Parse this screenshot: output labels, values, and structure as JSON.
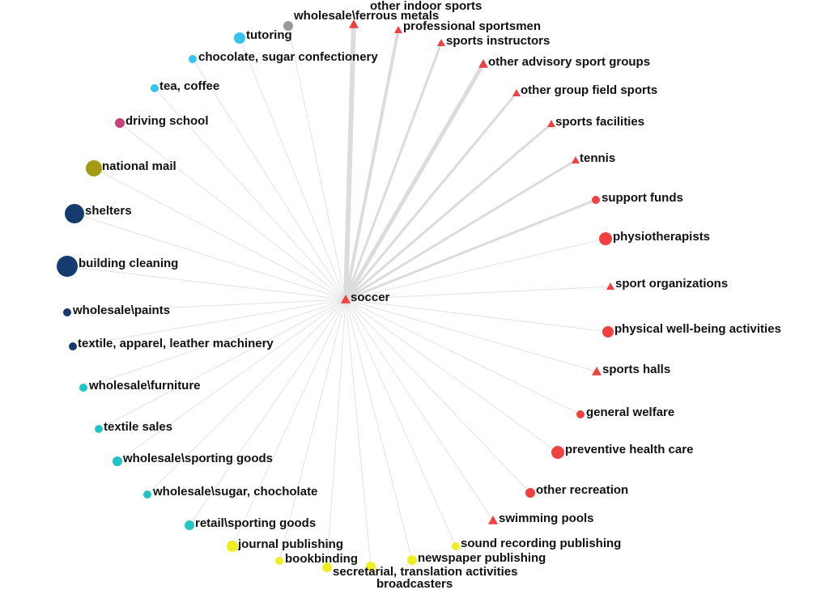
{
  "center": {
    "label": "soccer",
    "color": "#f04040",
    "shape": "triangle"
  },
  "nodes": [
    {
      "label": "other indoor sports",
      "color": "#f04040",
      "shape": "triangle"
    },
    {
      "label": "wholesale\\ferrous metals",
      "color": "#999999",
      "shape": "circle"
    },
    {
      "label": "professional sportsmen",
      "color": "#f04040",
      "shape": "triangle"
    },
    {
      "label": "sports instructors",
      "color": "#f04040",
      "shape": "triangle"
    },
    {
      "label": "other advisory sport groups",
      "color": "#f04040",
      "shape": "triangle"
    },
    {
      "label": "other group field sports",
      "color": "#f04040",
      "shape": "triangle"
    },
    {
      "label": "sports facilities",
      "color": "#f04040",
      "shape": "triangle"
    },
    {
      "label": "tennis",
      "color": "#f04040",
      "shape": "triangle"
    },
    {
      "label": "support funds",
      "color": "#f04040",
      "shape": "circle"
    },
    {
      "label": "physiotherapists",
      "color": "#f04040",
      "shape": "circle"
    },
    {
      "label": "sport organizations",
      "color": "#f04040",
      "shape": "triangle"
    },
    {
      "label": "physical well-being activities",
      "color": "#f04040",
      "shape": "circle"
    },
    {
      "label": "sports halls",
      "color": "#f04040",
      "shape": "triangle"
    },
    {
      "label": "general welfare",
      "color": "#f04040",
      "shape": "circle"
    },
    {
      "label": "preventive health care",
      "color": "#f04040",
      "shape": "circle"
    },
    {
      "label": "other recreation",
      "color": "#f04040",
      "shape": "circle"
    },
    {
      "label": "swimming pools",
      "color": "#f04040",
      "shape": "triangle"
    },
    {
      "label": "sound recording publishing",
      "color": "#eeee22",
      "shape": "circle"
    },
    {
      "label": "newspaper publishing",
      "color": "#eeee22",
      "shape": "circle"
    },
    {
      "label": "broadcasters",
      "color": "#eeee22",
      "shape": "circle"
    },
    {
      "label": "secretarial, translation activities",
      "color": "#eeee22",
      "shape": "circle"
    },
    {
      "label": "bookbinding",
      "color": "#eeee22",
      "shape": "circle"
    },
    {
      "label": "journal publishing",
      "color": "#eeee22",
      "shape": "circle"
    },
    {
      "label": "retail\\sporting goods",
      "color": "#22c4c4",
      "shape": "circle"
    },
    {
      "label": "wholesale\\sugar, chocholate",
      "color": "#22c4c4",
      "shape": "circle"
    },
    {
      "label": "wholesale\\sporting goods",
      "color": "#22c4c4",
      "shape": "circle"
    },
    {
      "label": "textile sales",
      "color": "#22c4c4",
      "shape": "circle"
    },
    {
      "label": "wholesale\\furniture",
      "color": "#22c4c4",
      "shape": "circle"
    },
    {
      "label": "textile, apparel, leather machinery",
      "color": "#143c6e",
      "shape": "circle"
    },
    {
      "label": "wholesale\\paints",
      "color": "#143c6e",
      "shape": "circle"
    },
    {
      "label": "building cleaning",
      "color": "#143c6e",
      "shape": "circle"
    },
    {
      "label": "shelters",
      "color": "#143c6e",
      "shape": "circle"
    },
    {
      "label": "national mail",
      "color": "#a39c12",
      "shape": "circle"
    },
    {
      "label": "driving school",
      "color": "#c4427a",
      "shape": "circle"
    },
    {
      "label": "tea, coffee",
      "color": "#33c4f0",
      "shape": "circle"
    },
    {
      "label": "chocolate, sugar confectionery",
      "color": "#33c4f0",
      "shape": "circle"
    },
    {
      "label": "tutoring",
      "color": "#33c4f0",
      "shape": "circle"
    }
  ]
}
